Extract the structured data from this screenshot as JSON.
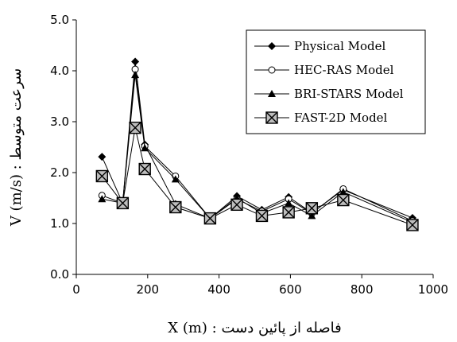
{
  "chart_data": {
    "type": "line",
    "xlabel": "X (m) : فاصله از پائین دست",
    "ylabel": "V (m/s) : سرعت متوسط",
    "xlim": [
      0,
      1000
    ],
    "ylim": [
      0.0,
      5.0
    ],
    "x_ticks": [
      "0",
      "200",
      "400",
      "600",
      "800",
      "1000"
    ],
    "y_ticks": [
      "0.0",
      "1.0",
      "2.0",
      "3.0",
      "4.0",
      "5.0"
    ],
    "grid": false,
    "legend_position": "top-right",
    "series": [
      {
        "name": "Physical Model",
        "marker": "diamond",
        "points": [
          [
            72,
            2.31
          ],
          [
            130,
            1.4
          ],
          [
            165,
            4.18
          ],
          [
            192,
            2.55
          ],
          [
            278,
            1.38
          ],
          [
            375,
            1.1
          ],
          [
            450,
            1.54
          ],
          [
            520,
            1.27
          ],
          [
            595,
            1.52
          ],
          [
            660,
            1.21
          ],
          [
            748,
            1.66
          ],
          [
            942,
            1.11
          ]
        ]
      },
      {
        "name": "HEC-RAS Model",
        "marker": "circle-open",
        "points": [
          [
            72,
            1.55
          ],
          [
            130,
            1.4
          ],
          [
            165,
            4.03
          ],
          [
            192,
            2.52
          ],
          [
            278,
            1.93
          ],
          [
            375,
            1.1
          ],
          [
            450,
            1.48
          ],
          [
            520,
            1.24
          ],
          [
            595,
            1.48
          ],
          [
            660,
            1.2
          ],
          [
            748,
            1.68
          ],
          [
            942,
            1.05
          ]
        ]
      },
      {
        "name": "BRI-STARS Model",
        "marker": "triangle",
        "points": [
          [
            72,
            1.48
          ],
          [
            130,
            1.4
          ],
          [
            165,
            3.92
          ],
          [
            192,
            2.48
          ],
          [
            278,
            1.87
          ],
          [
            375,
            1.1
          ],
          [
            450,
            1.5
          ],
          [
            520,
            1.2
          ],
          [
            595,
            1.4
          ],
          [
            660,
            1.15
          ],
          [
            748,
            1.62
          ],
          [
            942,
            1.02
          ]
        ]
      },
      {
        "name": "FAST-2D Model",
        "marker": "square-x",
        "points": [
          [
            72,
            1.93
          ],
          [
            130,
            1.4
          ],
          [
            165,
            2.88
          ],
          [
            192,
            2.07
          ],
          [
            278,
            1.32
          ],
          [
            375,
            1.1
          ],
          [
            450,
            1.37
          ],
          [
            520,
            1.15
          ],
          [
            595,
            1.22
          ],
          [
            660,
            1.3
          ],
          [
            748,
            1.46
          ],
          [
            942,
            0.97
          ]
        ]
      }
    ]
  }
}
